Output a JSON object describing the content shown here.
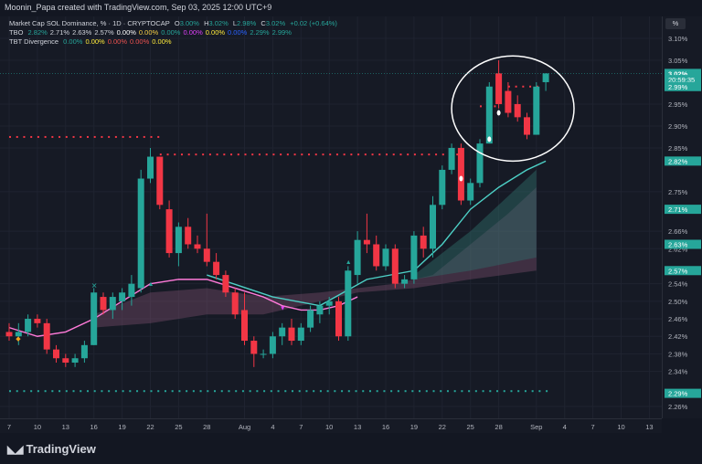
{
  "header": {
    "credit": "Moonin_Papa created with TradingView.com, Sep 03, 2025 12:00 UTC+9"
  },
  "legend": {
    "main": {
      "title": "Market Cap SOL Dominance, % · 1D · CRYPTOCAP",
      "o_label": "O",
      "o": "3.00%",
      "h_label": "H",
      "h": "3.02%",
      "l_label": "L",
      "l": "2.98%",
      "c_label": "C",
      "c": "3.02%",
      "change": "+0.02 (+0.64%)"
    },
    "tbo": {
      "name": "TBO",
      "values": [
        "2.82%",
        "2.71%",
        "2.63%",
        "2.57%",
        "0.00%",
        "0.00%",
        "0.00%",
        "0.00%",
        "0.00%",
        "0.00%",
        "2.29%",
        "2.99%"
      ],
      "colors": [
        "#26a69a",
        "#d1d4dc",
        "#d1d4dc",
        "#d1d4dc",
        "#ffffff",
        "#f7d047",
        "#26a69a",
        "#e040fb",
        "#ffeb3b",
        "#2962ff",
        "#26a69a",
        "#26a69a"
      ]
    },
    "tbt": {
      "name": "TBT Divergence",
      "values": [
        "0.00%",
        "0.00%",
        "0.00%",
        "0.00%",
        "0.00%"
      ],
      "colors": [
        "#26a69a",
        "#ffeb3b",
        "#ef5350",
        "#ef5350",
        "#ffeb3b"
      ]
    }
  },
  "scale": {
    "unit_button": "%"
  },
  "colors": {
    "up": "#26a69a",
    "down": "#f23645",
    "background": "#161a25",
    "grid": "#1f2330",
    "tbo_line": "#4dd0c6",
    "ribbon": "#8c5a78",
    "annotation": "#ffffff"
  },
  "footer": {
    "brand": "TradingView"
  },
  "chart_data": {
    "type": "candlestick",
    "title": "Market Cap SOL Dominance, % · 1D · CRYPTOCAP",
    "y_unit": "%",
    "ylim": [
      2.22,
      3.15
    ],
    "y_ticks": [
      "3.10%",
      "3.05%",
      "2.95%",
      "2.90%",
      "2.85%",
      "2.75%",
      "2.66%",
      "2.62%",
      "2.54%",
      "2.50%",
      "2.46%",
      "2.42%",
      "2.38%",
      "2.34%",
      "2.26%"
    ],
    "y_tick_values": [
      3.1,
      3.05,
      2.95,
      2.9,
      2.85,
      2.75,
      2.66,
      2.62,
      2.54,
      2.5,
      2.46,
      2.42,
      2.38,
      2.34,
      2.26
    ],
    "x_ticks": [
      {
        "label": "7",
        "day": 7
      },
      {
        "label": "10",
        "day": 10
      },
      {
        "label": "13",
        "day": 13
      },
      {
        "label": "16",
        "day": 16
      },
      {
        "label": "19",
        "day": 19
      },
      {
        "label": "22",
        "day": 22
      },
      {
        "label": "25",
        "day": 25
      },
      {
        "label": "28",
        "day": 28
      },
      {
        "label": "Aug",
        "day": 32
      },
      {
        "label": "4",
        "day": 35
      },
      {
        "label": "7",
        "day": 38
      },
      {
        "label": "10",
        "day": 41
      },
      {
        "label": "13",
        "day": 44
      },
      {
        "label": "16",
        "day": 47
      },
      {
        "label": "19",
        "day": 50
      },
      {
        "label": "22",
        "day": 53
      },
      {
        "label": "25",
        "day": 56
      },
      {
        "label": "28",
        "day": 59
      },
      {
        "label": "Sep",
        "day": 63
      },
      {
        "label": "4",
        "day": 66
      },
      {
        "label": "7",
        "day": 69
      },
      {
        "label": "10",
        "day": 72
      },
      {
        "label": "13",
        "day": 75
      }
    ],
    "price_labels": [
      {
        "text": "3.02%",
        "value": 3.02,
        "type": "current"
      },
      {
        "text": "20:59:35",
        "value": 3.006,
        "type": "countdown"
      },
      {
        "text": "2.99%",
        "value": 2.99,
        "type": "level"
      },
      {
        "text": "2.82%",
        "value": 2.82,
        "type": "level"
      },
      {
        "text": "2.71%",
        "value": 2.71,
        "type": "level"
      },
      {
        "text": "2.63%",
        "value": 2.63,
        "type": "level"
      },
      {
        "text": "2.57%",
        "value": 2.57,
        "type": "level"
      },
      {
        "text": "2.29%",
        "value": 2.29,
        "type": "level"
      }
    ],
    "candles": [
      {
        "day": 7,
        "o": 2.43,
        "h": 2.45,
        "l": 2.41,
        "c": 2.42
      },
      {
        "day": 8,
        "o": 2.42,
        "h": 2.45,
        "l": 2.4,
        "c": 2.43
      },
      {
        "day": 9,
        "o": 2.43,
        "h": 2.47,
        "l": 2.42,
        "c": 2.46
      },
      {
        "day": 10,
        "o": 2.46,
        "h": 2.47,
        "l": 2.44,
        "c": 2.45
      },
      {
        "day": 11,
        "o": 2.45,
        "h": 2.46,
        "l": 2.38,
        "c": 2.39
      },
      {
        "day": 12,
        "o": 2.39,
        "h": 2.4,
        "l": 2.36,
        "c": 2.37
      },
      {
        "day": 13,
        "o": 2.37,
        "h": 2.38,
        "l": 2.35,
        "c": 2.36
      },
      {
        "day": 14,
        "o": 2.36,
        "h": 2.38,
        "l": 2.35,
        "c": 2.37
      },
      {
        "day": 15,
        "o": 2.37,
        "h": 2.41,
        "l": 2.36,
        "c": 2.4
      },
      {
        "day": 16,
        "o": 2.4,
        "h": 2.53,
        "l": 2.4,
        "c": 2.52
      },
      {
        "day": 17,
        "o": 2.51,
        "h": 2.52,
        "l": 2.47,
        "c": 2.48
      },
      {
        "day": 18,
        "o": 2.48,
        "h": 2.52,
        "l": 2.46,
        "c": 2.51
      },
      {
        "day": 19,
        "o": 2.5,
        "h": 2.53,
        "l": 2.48,
        "c": 2.52
      },
      {
        "day": 20,
        "o": 2.51,
        "h": 2.56,
        "l": 2.49,
        "c": 2.54
      },
      {
        "day": 21,
        "o": 2.53,
        "h": 2.8,
        "l": 2.52,
        "c": 2.78
      },
      {
        "day": 22,
        "o": 2.78,
        "h": 2.85,
        "l": 2.77,
        "c": 2.83
      },
      {
        "day": 23,
        "o": 2.83,
        "h": 2.83,
        "l": 2.71,
        "c": 2.72
      },
      {
        "day": 24,
        "o": 2.71,
        "h": 2.73,
        "l": 2.6,
        "c": 2.61
      },
      {
        "day": 25,
        "o": 2.61,
        "h": 2.68,
        "l": 2.58,
        "c": 2.67
      },
      {
        "day": 26,
        "o": 2.67,
        "h": 2.69,
        "l": 2.62,
        "c": 2.63
      },
      {
        "day": 27,
        "o": 2.63,
        "h": 2.65,
        "l": 2.61,
        "c": 2.62
      },
      {
        "day": 28,
        "o": 2.62,
        "h": 2.7,
        "l": 2.58,
        "c": 2.59
      },
      {
        "day": 29,
        "o": 2.59,
        "h": 2.61,
        "l": 2.55,
        "c": 2.56
      },
      {
        "day": 30,
        "o": 2.56,
        "h": 2.57,
        "l": 2.51,
        "c": 2.52
      },
      {
        "day": 31,
        "o": 2.52,
        "h": 2.53,
        "l": 2.46,
        "c": 2.47
      },
      {
        "day": 32,
        "o": 2.48,
        "h": 2.52,
        "l": 2.4,
        "c": 2.41
      },
      {
        "day": 33,
        "o": 2.41,
        "h": 2.42,
        "l": 2.35,
        "c": 2.38
      },
      {
        "day": 34,
        "o": 2.38,
        "h": 2.39,
        "l": 2.37,
        "c": 2.38
      },
      {
        "day": 35,
        "o": 2.38,
        "h": 2.43,
        "l": 2.37,
        "c": 2.42
      },
      {
        "day": 36,
        "o": 2.42,
        "h": 2.45,
        "l": 2.4,
        "c": 2.44
      },
      {
        "day": 37,
        "o": 2.44,
        "h": 2.46,
        "l": 2.4,
        "c": 2.41
      },
      {
        "day": 38,
        "o": 2.41,
        "h": 2.45,
        "l": 2.4,
        "c": 2.44
      },
      {
        "day": 39,
        "o": 2.44,
        "h": 2.49,
        "l": 2.43,
        "c": 2.48
      },
      {
        "day": 40,
        "o": 2.47,
        "h": 2.5,
        "l": 2.45,
        "c": 2.49
      },
      {
        "day": 41,
        "o": 2.49,
        "h": 2.51,
        "l": 2.47,
        "c": 2.5
      },
      {
        "day": 42,
        "o": 2.5,
        "h": 2.51,
        "l": 2.41,
        "c": 2.42
      },
      {
        "day": 43,
        "o": 2.42,
        "h": 2.58,
        "l": 2.41,
        "c": 2.57
      },
      {
        "day": 44,
        "o": 2.56,
        "h": 2.66,
        "l": 2.54,
        "c": 2.64
      },
      {
        "day": 45,
        "o": 2.64,
        "h": 2.7,
        "l": 2.61,
        "c": 2.63
      },
      {
        "day": 46,
        "o": 2.63,
        "h": 2.65,
        "l": 2.57,
        "c": 2.58
      },
      {
        "day": 47,
        "o": 2.58,
        "h": 2.63,
        "l": 2.57,
        "c": 2.62
      },
      {
        "day": 48,
        "o": 2.62,
        "h": 2.63,
        "l": 2.53,
        "c": 2.54
      },
      {
        "day": 49,
        "o": 2.54,
        "h": 2.56,
        "l": 2.53,
        "c": 2.55
      },
      {
        "day": 50,
        "o": 2.55,
        "h": 2.66,
        "l": 2.54,
        "c": 2.65
      },
      {
        "day": 51,
        "o": 2.65,
        "h": 2.67,
        "l": 2.6,
        "c": 2.62
      },
      {
        "day": 52,
        "o": 2.62,
        "h": 2.74,
        "l": 2.6,
        "c": 2.72
      },
      {
        "day": 53,
        "o": 2.72,
        "h": 2.81,
        "l": 2.71,
        "c": 2.8
      },
      {
        "day": 54,
        "o": 2.8,
        "h": 2.86,
        "l": 2.79,
        "c": 2.85
      },
      {
        "day": 55,
        "o": 2.85,
        "h": 2.86,
        "l": 2.72,
        "c": 2.73
      },
      {
        "day": 56,
        "o": 2.73,
        "h": 2.78,
        "l": 2.72,
        "c": 2.77
      },
      {
        "day": 57,
        "o": 2.77,
        "h": 2.87,
        "l": 2.76,
        "c": 2.86
      },
      {
        "day": 58,
        "o": 2.86,
        "h": 3.0,
        "l": 2.86,
        "c": 2.99
      },
      {
        "day": 59,
        "o": 3.02,
        "h": 3.05,
        "l": 2.94,
        "c": 2.95
      },
      {
        "day": 60,
        "o": 2.98,
        "h": 3.0,
        "l": 2.92,
        "c": 2.93
      },
      {
        "day": 61,
        "o": 2.95,
        "h": 2.97,
        "l": 2.91,
        "c": 2.92
      },
      {
        "day": 62,
        "o": 2.92,
        "h": 2.93,
        "l": 2.87,
        "c": 2.88
      },
      {
        "day": 63,
        "o": 2.88,
        "h": 3.0,
        "l": 2.88,
        "c": 2.99
      },
      {
        "day": 64,
        "o": 3.0,
        "h": 3.02,
        "l": 2.98,
        "c": 3.02
      }
    ],
    "series": [
      {
        "name": "TBO",
        "color": "#4dd0c6",
        "points": [
          [
            28,
            2.56
          ],
          [
            35,
            2.51
          ],
          [
            40,
            2.49
          ],
          [
            45,
            2.55
          ],
          [
            50,
            2.57
          ],
          [
            53,
            2.63
          ],
          [
            56,
            2.71
          ],
          [
            59,
            2.76
          ],
          [
            62,
            2.8
          ],
          [
            64,
            2.82
          ]
        ]
      },
      {
        "color": "#ff7ad9",
        "points": [
          [
            7,
            2.44
          ],
          [
            10,
            2.42
          ],
          [
            13,
            2.43
          ],
          [
            16,
            2.46
          ],
          [
            19,
            2.5
          ],
          [
            22,
            2.54
          ],
          [
            25,
            2.55
          ],
          [
            28,
            2.55
          ],
          [
            31,
            2.53
          ],
          [
            34,
            2.51
          ],
          [
            36,
            2.49
          ],
          [
            38,
            2.48
          ],
          [
            40,
            2.48
          ],
          [
            42,
            2.49
          ],
          [
            44,
            2.51
          ]
        ]
      }
    ],
    "dotted_levels": [
      {
        "value": 2.875,
        "from_day": 7,
        "to_day": 23,
        "color": "#f23645"
      },
      {
        "value": 2.835,
        "from_day": 23,
        "to_day": 55,
        "color": "#f23645"
      },
      {
        "value": 2.945,
        "from_day": 57,
        "to_day": 59,
        "color": "#f23645"
      },
      {
        "value": 2.99,
        "from_day": 60,
        "to_day": 63,
        "color": "#f23645"
      },
      {
        "value": 2.295,
        "from_day": 7,
        "to_day": 64,
        "color": "#26a69a"
      }
    ],
    "annotation": {
      "type": "ellipse",
      "center_day": 60.5,
      "center_value": 2.94,
      "rx_days": 6.5,
      "ry_value": 0.12
    }
  }
}
